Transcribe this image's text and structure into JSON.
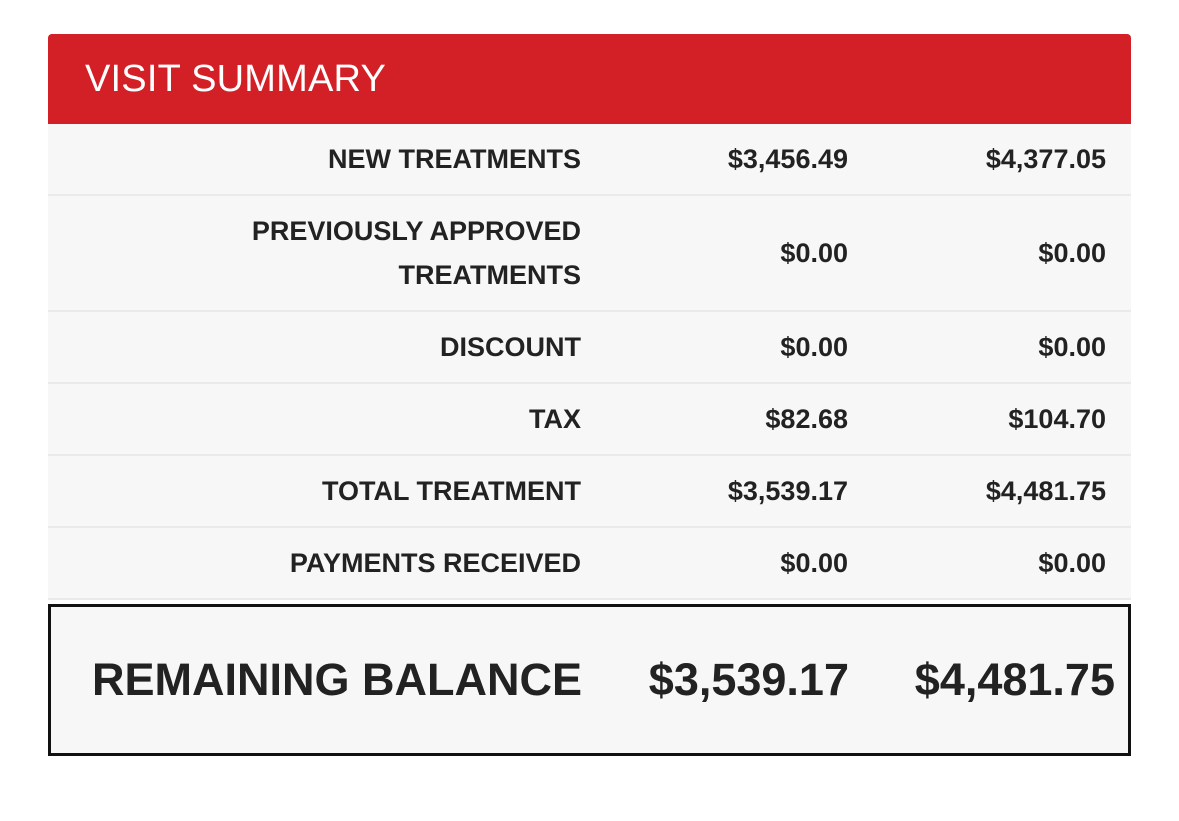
{
  "header": {
    "title": "VISIT SUMMARY"
  },
  "rows": [
    {
      "label": "NEW TREATMENTS",
      "value_1": "$3,456.49",
      "value_2": "$4,377.05"
    },
    {
      "label": "PREVIOUSLY APPROVED TREATMENTS",
      "value_1": "$0.00",
      "value_2": "$0.00"
    },
    {
      "label": "DISCOUNT",
      "value_1": "$0.00",
      "value_2": "$0.00"
    },
    {
      "label": "TAX",
      "value_1": "$82.68",
      "value_2": "$104.70"
    },
    {
      "label": "TOTAL TREATMENT",
      "value_1": "$3,539.17",
      "value_2": "$4,481.75"
    },
    {
      "label": "PAYMENTS RECEIVED",
      "value_1": "$0.00",
      "value_2": "$0.00"
    }
  ],
  "balance": {
    "label": "REMAINING BALANCE",
    "value_1": "$3,539.17",
    "value_2": "$4,481.75"
  },
  "colors": {
    "header_red": "#d32027",
    "row_background": "#f7f7f7",
    "text": "#222222"
  }
}
